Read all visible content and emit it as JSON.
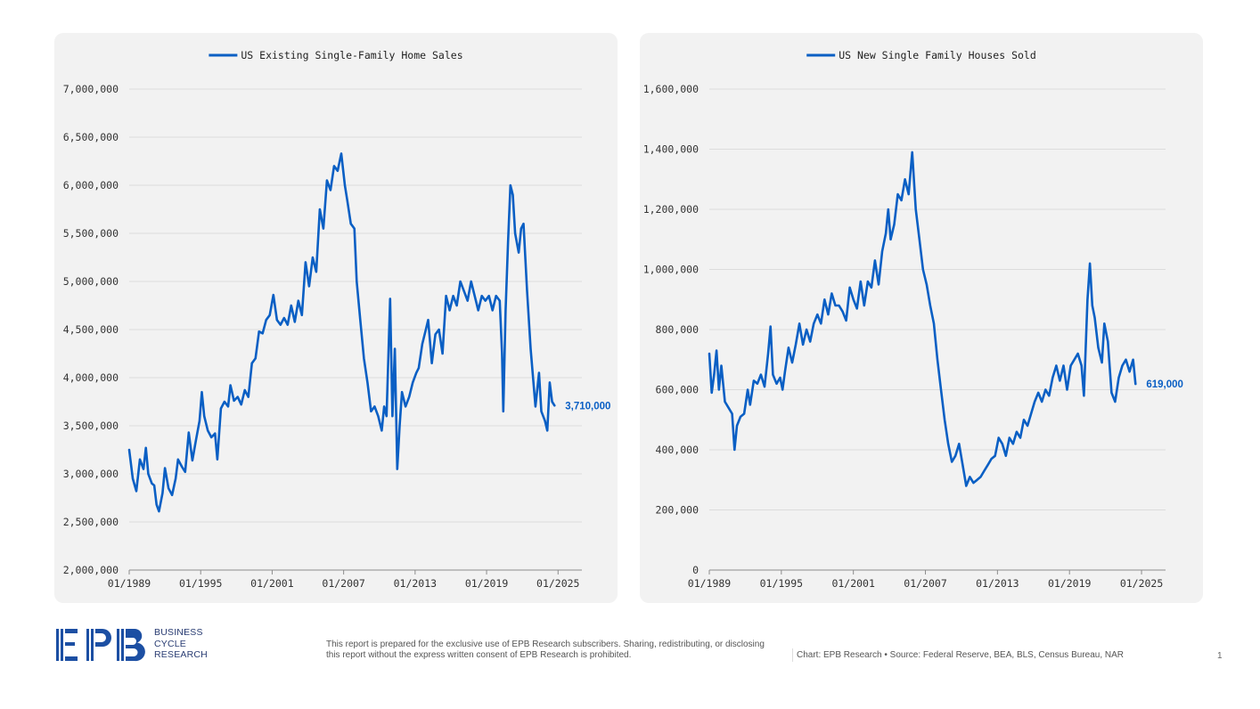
{
  "chart_data": [
    {
      "type": "line",
      "legend": "US Existing Single-Family Home Sales",
      "series": [
        {
          "name": "US Existing Single-Family Home Sales",
          "color": "#0a5fc4"
        }
      ],
      "last_value_label": "3,710,000",
      "ylim": [
        2000000,
        7000000
      ],
      "y_ticks": [
        2000000,
        2500000,
        3000000,
        3500000,
        4000000,
        4500000,
        5000000,
        5500000,
        6000000,
        6500000,
        7000000
      ],
      "y_tick_labels": [
        "2,000,000",
        "2,500,000",
        "3,000,000",
        "3,500,000",
        "4,000,000",
        "4,500,000",
        "5,000,000",
        "5,500,000",
        "6,000,000",
        "6,500,000",
        "7,000,000"
      ],
      "x_ticks": [
        1989,
        1995,
        2001,
        2007,
        2013,
        2019,
        2025
      ],
      "x_tick_labels": [
        "01/1989",
        "01/1995",
        "01/2001",
        "01/2007",
        "01/2013",
        "01/2019",
        "01/2025"
      ],
      "xlim": [
        1989,
        2027
      ],
      "grid": true,
      "legend_position": "top",
      "points": [
        [
          1989.0,
          3250000
        ],
        [
          1989.3,
          2950000
        ],
        [
          1989.6,
          2820000
        ],
        [
          1989.9,
          3150000
        ],
        [
          1990.2,
          3050000
        ],
        [
          1990.4,
          3270000
        ],
        [
          1990.6,
          3000000
        ],
        [
          1990.9,
          2900000
        ],
        [
          1991.1,
          2880000
        ],
        [
          1991.3,
          2680000
        ],
        [
          1991.5,
          2610000
        ],
        [
          1991.8,
          2800000
        ],
        [
          1992.0,
          3060000
        ],
        [
          1992.3,
          2850000
        ],
        [
          1992.6,
          2780000
        ],
        [
          1992.9,
          2950000
        ],
        [
          1993.1,
          3150000
        ],
        [
          1993.4,
          3080000
        ],
        [
          1993.7,
          3020000
        ],
        [
          1994.0,
          3430000
        ],
        [
          1994.3,
          3140000
        ],
        [
          1994.6,
          3350000
        ],
        [
          1994.9,
          3550000
        ],
        [
          1995.1,
          3850000
        ],
        [
          1995.3,
          3600000
        ],
        [
          1995.6,
          3450000
        ],
        [
          1995.9,
          3380000
        ],
        [
          1996.2,
          3420000
        ],
        [
          1996.4,
          3150000
        ],
        [
          1996.7,
          3680000
        ],
        [
          1997.0,
          3750000
        ],
        [
          1997.3,
          3700000
        ],
        [
          1997.5,
          3920000
        ],
        [
          1997.8,
          3760000
        ],
        [
          1998.1,
          3800000
        ],
        [
          1998.4,
          3720000
        ],
        [
          1998.7,
          3870000
        ],
        [
          1999.0,
          3800000
        ],
        [
          1999.3,
          4150000
        ],
        [
          1999.6,
          4200000
        ],
        [
          1999.9,
          4480000
        ],
        [
          2000.2,
          4460000
        ],
        [
          2000.5,
          4600000
        ],
        [
          2000.8,
          4650000
        ],
        [
          2001.1,
          4860000
        ],
        [
          2001.4,
          4600000
        ],
        [
          2001.7,
          4550000
        ],
        [
          2002.0,
          4620000
        ],
        [
          2002.3,
          4550000
        ],
        [
          2002.6,
          4750000
        ],
        [
          2002.9,
          4580000
        ],
        [
          2003.2,
          4800000
        ],
        [
          2003.5,
          4650000
        ],
        [
          2003.8,
          5200000
        ],
        [
          2004.1,
          4950000
        ],
        [
          2004.4,
          5250000
        ],
        [
          2004.7,
          5100000
        ],
        [
          2005.0,
          5750000
        ],
        [
          2005.3,
          5550000
        ],
        [
          2005.6,
          6050000
        ],
        [
          2005.9,
          5950000
        ],
        [
          2006.2,
          6200000
        ],
        [
          2006.5,
          6150000
        ],
        [
          2006.8,
          6330000
        ],
        [
          2007.1,
          6000000
        ],
        [
          2007.3,
          5850000
        ],
        [
          2007.6,
          5600000
        ],
        [
          2007.9,
          5550000
        ],
        [
          2008.1,
          5000000
        ],
        [
          2008.4,
          4600000
        ],
        [
          2008.7,
          4200000
        ],
        [
          2009.0,
          3950000
        ],
        [
          2009.3,
          3650000
        ],
        [
          2009.6,
          3700000
        ],
        [
          2009.9,
          3600000
        ],
        [
          2010.2,
          3450000
        ],
        [
          2010.4,
          3700000
        ],
        [
          2010.6,
          3600000
        ],
        [
          2010.9,
          4820000
        ],
        [
          2011.1,
          3600000
        ],
        [
          2011.3,
          4300000
        ],
        [
          2011.5,
          3050000
        ],
        [
          2011.7,
          3500000
        ],
        [
          2011.9,
          3850000
        ],
        [
          2012.2,
          3700000
        ],
        [
          2012.5,
          3800000
        ],
        [
          2012.8,
          3950000
        ],
        [
          2013.1,
          4050000
        ],
        [
          2013.3,
          4100000
        ],
        [
          2013.6,
          4350000
        ],
        [
          2013.9,
          4500000
        ],
        [
          2014.1,
          4600000
        ],
        [
          2014.4,
          4150000
        ],
        [
          2014.7,
          4450000
        ],
        [
          2015.0,
          4500000
        ],
        [
          2015.3,
          4250000
        ],
        [
          2015.6,
          4850000
        ],
        [
          2015.9,
          4700000
        ],
        [
          2016.2,
          4850000
        ],
        [
          2016.5,
          4750000
        ],
        [
          2016.8,
          5000000
        ],
        [
          2017.1,
          4900000
        ],
        [
          2017.4,
          4800000
        ],
        [
          2017.7,
          5000000
        ],
        [
          2018.0,
          4850000
        ],
        [
          2018.3,
          4700000
        ],
        [
          2018.6,
          4850000
        ],
        [
          2018.9,
          4800000
        ],
        [
          2019.2,
          4850000
        ],
        [
          2019.5,
          4700000
        ],
        [
          2019.8,
          4850000
        ],
        [
          2020.1,
          4800000
        ],
        [
          2020.3,
          4250000
        ],
        [
          2020.4,
          3650000
        ],
        [
          2020.6,
          4700000
        ],
        [
          2020.8,
          5400000
        ],
        [
          2021.0,
          6000000
        ],
        [
          2021.2,
          5900000
        ],
        [
          2021.4,
          5500000
        ],
        [
          2021.7,
          5300000
        ],
        [
          2021.9,
          5550000
        ],
        [
          2022.1,
          5600000
        ],
        [
          2022.4,
          4900000
        ],
        [
          2022.7,
          4300000
        ],
        [
          2022.9,
          4000000
        ],
        [
          2023.1,
          3700000
        ],
        [
          2023.4,
          4050000
        ],
        [
          2023.6,
          3650000
        ],
        [
          2023.9,
          3550000
        ],
        [
          2024.1,
          3450000
        ],
        [
          2024.3,
          3950000
        ],
        [
          2024.5,
          3750000
        ],
        [
          2024.7,
          3710000
        ]
      ]
    },
    {
      "type": "line",
      "legend": "US New Single Family Houses Sold",
      "series": [
        {
          "name": "US New Single Family Houses Sold",
          "color": "#0a5fc4"
        }
      ],
      "last_value_label": "619,000",
      "ylim": [
        0,
        1600000
      ],
      "y_ticks": [
        0,
        200000,
        400000,
        600000,
        800000,
        1000000,
        1200000,
        1400000,
        1600000
      ],
      "y_tick_labels": [
        "0",
        "200,000",
        "400,000",
        "600,000",
        "800,000",
        "1,000,000",
        "1,200,000",
        "1,400,000",
        "1,600,000"
      ],
      "x_ticks": [
        1989,
        1995,
        2001,
        2007,
        2013,
        2019,
        2025
      ],
      "x_tick_labels": [
        "01/1989",
        "01/1995",
        "01/2001",
        "01/2007",
        "01/2013",
        "01/2019",
        "01/2025"
      ],
      "xlim": [
        1989,
        2027
      ],
      "grid": true,
      "legend_position": "top",
      "points": [
        [
          1989.0,
          720000
        ],
        [
          1989.2,
          590000
        ],
        [
          1989.4,
          650000
        ],
        [
          1989.6,
          730000
        ],
        [
          1989.8,
          600000
        ],
        [
          1990.0,
          680000
        ],
        [
          1990.3,
          560000
        ],
        [
          1990.6,
          540000
        ],
        [
          1990.9,
          520000
        ],
        [
          1991.1,
          400000
        ],
        [
          1991.3,
          480000
        ],
        [
          1991.6,
          510000
        ],
        [
          1991.9,
          520000
        ],
        [
          1992.2,
          600000
        ],
        [
          1992.4,
          550000
        ],
        [
          1992.7,
          630000
        ],
        [
          1993.0,
          620000
        ],
        [
          1993.3,
          650000
        ],
        [
          1993.6,
          610000
        ],
        [
          1993.9,
          720000
        ],
        [
          1994.1,
          810000
        ],
        [
          1994.3,
          650000
        ],
        [
          1994.6,
          620000
        ],
        [
          1994.9,
          640000
        ],
        [
          1995.1,
          600000
        ],
        [
          1995.3,
          660000
        ],
        [
          1995.6,
          740000
        ],
        [
          1995.9,
          690000
        ],
        [
          1996.2,
          750000
        ],
        [
          1996.5,
          820000
        ],
        [
          1996.8,
          750000
        ],
        [
          1997.1,
          800000
        ],
        [
          1997.4,
          760000
        ],
        [
          1997.7,
          820000
        ],
        [
          1998.0,
          850000
        ],
        [
          1998.3,
          820000
        ],
        [
          1998.6,
          900000
        ],
        [
          1998.9,
          850000
        ],
        [
          1999.2,
          920000
        ],
        [
          1999.5,
          880000
        ],
        [
          1999.8,
          880000
        ],
        [
          2000.1,
          860000
        ],
        [
          2000.4,
          830000
        ],
        [
          2000.7,
          940000
        ],
        [
          2001.0,
          900000
        ],
        [
          2001.3,
          870000
        ],
        [
          2001.6,
          960000
        ],
        [
          2001.9,
          880000
        ],
        [
          2002.2,
          960000
        ],
        [
          2002.5,
          940000
        ],
        [
          2002.8,
          1030000
        ],
        [
          2003.1,
          950000
        ],
        [
          2003.4,
          1060000
        ],
        [
          2003.7,
          1120000
        ],
        [
          2003.9,
          1200000
        ],
        [
          2004.1,
          1100000
        ],
        [
          2004.4,
          1150000
        ],
        [
          2004.7,
          1250000
        ],
        [
          2005.0,
          1230000
        ],
        [
          2005.3,
          1300000
        ],
        [
          2005.6,
          1250000
        ],
        [
          2005.9,
          1390000
        ],
        [
          2006.2,
          1200000
        ],
        [
          2006.5,
          1100000
        ],
        [
          2006.8,
          1000000
        ],
        [
          2007.1,
          950000
        ],
        [
          2007.4,
          880000
        ],
        [
          2007.7,
          820000
        ],
        [
          2008.0,
          700000
        ],
        [
          2008.3,
          600000
        ],
        [
          2008.6,
          500000
        ],
        [
          2008.9,
          420000
        ],
        [
          2009.2,
          360000
        ],
        [
          2009.5,
          380000
        ],
        [
          2009.8,
          420000
        ],
        [
          2010.1,
          350000
        ],
        [
          2010.4,
          280000
        ],
        [
          2010.7,
          310000
        ],
        [
          2011.0,
          290000
        ],
        [
          2011.3,
          300000
        ],
        [
          2011.6,
          310000
        ],
        [
          2011.9,
          330000
        ],
        [
          2012.2,
          350000
        ],
        [
          2012.5,
          370000
        ],
        [
          2012.8,
          380000
        ],
        [
          2013.1,
          440000
        ],
        [
          2013.4,
          420000
        ],
        [
          2013.7,
          380000
        ],
        [
          2014.0,
          440000
        ],
        [
          2014.3,
          420000
        ],
        [
          2014.6,
          460000
        ],
        [
          2014.9,
          440000
        ],
        [
          2015.2,
          500000
        ],
        [
          2015.5,
          480000
        ],
        [
          2015.8,
          520000
        ],
        [
          2016.1,
          560000
        ],
        [
          2016.4,
          590000
        ],
        [
          2016.7,
          560000
        ],
        [
          2017.0,
          600000
        ],
        [
          2017.3,
          580000
        ],
        [
          2017.6,
          640000
        ],
        [
          2017.9,
          680000
        ],
        [
          2018.2,
          630000
        ],
        [
          2018.5,
          680000
        ],
        [
          2018.8,
          600000
        ],
        [
          2019.1,
          680000
        ],
        [
          2019.4,
          700000
        ],
        [
          2019.7,
          720000
        ],
        [
          2020.0,
          680000
        ],
        [
          2020.2,
          580000
        ],
        [
          2020.5,
          900000
        ],
        [
          2020.7,
          1020000
        ],
        [
          2020.9,
          880000
        ],
        [
          2021.1,
          840000
        ],
        [
          2021.4,
          740000
        ],
        [
          2021.7,
          690000
        ],
        [
          2021.9,
          820000
        ],
        [
          2022.2,
          760000
        ],
        [
          2022.5,
          590000
        ],
        [
          2022.8,
          560000
        ],
        [
          2023.1,
          640000
        ],
        [
          2023.4,
          680000
        ],
        [
          2023.7,
          700000
        ],
        [
          2024.0,
          660000
        ],
        [
          2024.3,
          700000
        ],
        [
          2024.5,
          619000
        ]
      ]
    }
  ],
  "footer": {
    "logo_letters": "EPB",
    "logo_lines": [
      "BUSINESS",
      "CYCLE",
      "RESEARCH"
    ],
    "disclaimer": "This report is prepared for the exclusive use of EPB Research subscribers. Sharing, redistributing, or disclosing this report without the express written consent of EPB Research is prohibited.",
    "source": "Chart: EPB Research  •  Source: Federal Reserve, BEA, BLS, Census Bureau, NAR",
    "page_number": "1"
  }
}
